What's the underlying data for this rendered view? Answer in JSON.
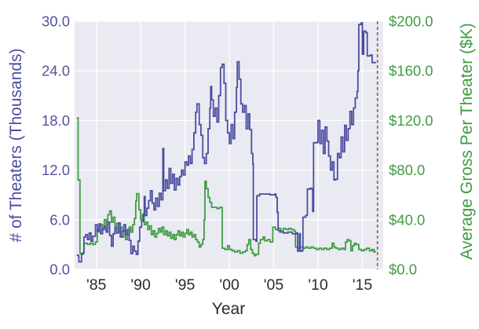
{
  "chart_data": {
    "type": "line",
    "title": "",
    "xlabel": "Year",
    "x_range": [
      1982.55,
      2017.35
    ],
    "grid": true,
    "plot_background": "#eaeaf2",
    "grid_color": "#ffffff",
    "x_ticks": {
      "labels": [
        "'85",
        "'90",
        "'95",
        "'00",
        "'05",
        "'10",
        "'15"
      ],
      "values": [
        1985,
        1990,
        1995,
        2000,
        2005,
        2010,
        2015
      ]
    },
    "left_axis": {
      "label": "# of Theaters (Thousands)",
      "color": "#4b4da0",
      "range": [
        0,
        30
      ],
      "tick_values": [
        0,
        6,
        12,
        18,
        24,
        30
      ],
      "tick_labels": [
        "0.0",
        "6.0",
        "12.0",
        "18.0",
        "24.0",
        "30.0"
      ]
    },
    "right_axis": {
      "label": "Average Gross Per Theater ($K)",
      "color": "#3f9c42",
      "range": [
        0,
        200
      ],
      "tick_values": [
        0,
        40,
        80,
        120,
        160,
        200
      ],
      "tick_labels": [
        "$0.0",
        "$40.0",
        "$80.0",
        "$120.0",
        "$160.0",
        "$200.0"
      ]
    },
    "vertical_marker": {
      "x": 2016.7,
      "color": "#a35252",
      "style": "dashed"
    },
    "series": [
      {
        "name": "Average Gross Per Theater ($K)",
        "axis": "right",
        "color": "#3f9c42",
        "x": [
          1982.8,
          1982.92,
          1982.95,
          1983.1,
          1983.15,
          1983.3,
          1983.5,
          1983.6,
          1983.8,
          1984.0,
          1984.3,
          1984.6,
          1984.9,
          1985.1,
          1985.3,
          1985.5,
          1985.7,
          1985.9,
          1986.1,
          1986.3,
          1986.5,
          1986.7,
          1986.9,
          1987.1,
          1987.3,
          1987.5,
          1987.7,
          1987.9,
          1988.1,
          1988.3,
          1988.5,
          1988.7,
          1988.9,
          1989.1,
          1989.3,
          1989.45,
          1989.55,
          1989.8,
          1990.0,
          1990.2,
          1990.4,
          1990.6,
          1990.8,
          1991.0,
          1991.2,
          1991.4,
          1991.6,
          1991.8,
          1992.0,
          1992.2,
          1992.4,
          1992.6,
          1992.8,
          1993.0,
          1993.2,
          1993.4,
          1993.6,
          1993.8,
          1994.0,
          1994.2,
          1994.4,
          1994.6,
          1994.8,
          1995.0,
          1995.2,
          1995.4,
          1995.6,
          1995.8,
          1996.0,
          1996.2,
          1996.4,
          1996.6,
          1996.8,
          1997.0,
          1997.15,
          1997.25,
          1997.4,
          1997.6,
          1997.8,
          1998.0,
          1998.3,
          1998.6,
          1998.9,
          1999.1,
          1999.2,
          1999.5,
          1999.8,
          2000.0,
          2000.3,
          2000.6,
          2000.9,
          2001.2,
          2001.5,
          2001.8,
          2002.0,
          2002.2,
          2002.4,
          2002.6,
          2002.8,
          2003.0,
          2003.3,
          2003.5,
          2003.8,
          2004.0,
          2004.3,
          2004.6,
          2004.9,
          2005.2,
          2005.5,
          2005.8,
          2006.1,
          2006.4,
          2006.7,
          2007.0,
          2007.3,
          2007.45,
          2007.7,
          2008.0,
          2008.3,
          2008.6,
          2008.9,
          2009.2,
          2009.5,
          2009.8,
          2010.1,
          2010.4,
          2010.7,
          2011.0,
          2011.3,
          2011.6,
          2011.8,
          2012.0,
          2012.3,
          2012.6,
          2012.9,
          2013.1,
          2013.3,
          2013.5,
          2013.7,
          2013.9,
          2014.1,
          2014.3,
          2014.6,
          2014.9,
          2015.2,
          2015.5,
          2015.8,
          2016.1,
          2016.3,
          2016.45
        ],
        "y": [
          122,
          122,
          72,
          72,
          13,
          12,
          13,
          21,
          21,
          20,
          21,
          20,
          22,
          32,
          30,
          36,
          33,
          40,
          36,
          44,
          47,
          38,
          42,
          34,
          37,
          30,
          34,
          26,
          31,
          24,
          28,
          34,
          30,
          36,
          41,
          55,
          61,
          48,
          40,
          44,
          36,
          38,
          32,
          35,
          28,
          31,
          26,
          29,
          33,
          30,
          34,
          28,
          31,
          27,
          30,
          25,
          28,
          24,
          28,
          31,
          27,
          30,
          26,
          29,
          32,
          28,
          30,
          26,
          28,
          24,
          22,
          18,
          20,
          24,
          40,
          71,
          65,
          58,
          54,
          50,
          50,
          49,
          50,
          50,
          17,
          16,
          19,
          16,
          15,
          14,
          15,
          13,
          14,
          15,
          20,
          24,
          16,
          13,
          11,
          12,
          21,
          24,
          26,
          23,
          24,
          22,
          34,
          32,
          33,
          31,
          33,
          32,
          33,
          32,
          31,
          18,
          17,
          18,
          17,
          18,
          17,
          18,
          17,
          16,
          17,
          16,
          17,
          16,
          17,
          21,
          18,
          17,
          16,
          17,
          16,
          22,
          24,
          23,
          15,
          19,
          21,
          20,
          16,
          15,
          16,
          17,
          15,
          16,
          14,
          15
        ]
      },
      {
        "name": "# of Theaters (Thousands)",
        "axis": "left",
        "color": "#4b4da0",
        "x": [
          1982.8,
          1983.0,
          1983.03,
          1983.3,
          1983.33,
          1983.55,
          1983.6,
          1983.8,
          1984.0,
          1984.2,
          1984.4,
          1984.6,
          1984.9,
          1985.1,
          1985.3,
          1985.5,
          1985.7,
          1985.9,
          1986.1,
          1986.3,
          1986.5,
          1986.7,
          1986.9,
          1987.1,
          1987.3,
          1987.5,
          1987.7,
          1987.9,
          1988.1,
          1988.3,
          1988.5,
          1988.7,
          1988.9,
          1989.1,
          1989.3,
          1989.5,
          1989.7,
          1989.9,
          1990.1,
          1990.3,
          1990.4,
          1990.5,
          1990.7,
          1990.9,
          1991.1,
          1991.3,
          1991.5,
          1991.7,
          1991.9,
          1992.1,
          1992.3,
          1992.5,
          1992.6,
          1992.8,
          1993.0,
          1993.2,
          1993.4,
          1993.6,
          1993.8,
          1994.0,
          1994.2,
          1994.4,
          1994.6,
          1994.8,
          1995.0,
          1995.2,
          1995.4,
          1995.6,
          1995.8,
          1996.0,
          1996.2,
          1996.35,
          1996.6,
          1996.8,
          1997.0,
          1997.2,
          1997.4,
          1997.6,
          1997.8,
          1997.9,
          1998.0,
          1998.2,
          1998.4,
          1998.6,
          1998.8,
          1999.0,
          1999.2,
          1999.4,
          1999.6,
          1999.8,
          2000.0,
          2000.2,
          2000.4,
          2000.6,
          2000.8,
          2000.9,
          2001.1,
          2001.3,
          2001.5,
          2001.7,
          2001.9,
          2002.1,
          2002.3,
          2002.5,
          2002.65,
          2002.7,
          2003.0,
          2003.1,
          2003.4,
          2004.0,
          2004.6,
          2005.1,
          2005.25,
          2005.4,
          2005.5,
          2005.7,
          2006.1,
          2006.6,
          2007.1,
          2007.6,
          2007.7,
          2007.9,
          2008.0,
          2008.25,
          2008.3,
          2008.6,
          2008.8,
          2009.1,
          2009.3,
          2009.4,
          2009.5,
          2009.9,
          2010.0,
          2010.2,
          2010.4,
          2010.6,
          2010.8,
          2011.0,
          2011.2,
          2011.4,
          2011.6,
          2011.8,
          2012.0,
          2012.2,
          2012.4,
          2012.6,
          2012.8,
          2013.0,
          2013.2,
          2013.4,
          2013.6,
          2013.8,
          2014.0,
          2014.2,
          2014.4,
          2014.5,
          2014.6,
          2014.85,
          2015.0,
          2015.15,
          2015.4,
          2015.55,
          2015.9,
          2016.1,
          2016.45
        ],
        "y": [
          1.7,
          1.6,
          0.9,
          0.9,
          1.9,
          2.0,
          3.9,
          4.2,
          3.6,
          4.4,
          3.4,
          4.0,
          5.4,
          4.6,
          5.5,
          4.3,
          4.8,
          5.2,
          4.5,
          5.7,
          4.1,
          2.8,
          4.3,
          5.0,
          4.4,
          5.6,
          3.9,
          4.6,
          5.4,
          4.2,
          4.8,
          3.5,
          1.9,
          2.8,
          2.2,
          1.8,
          3.4,
          5.1,
          5.8,
          6.7,
          8.8,
          6.5,
          7.4,
          8.3,
          9.5,
          8.0,
          7.2,
          8.6,
          7.6,
          9.2,
          8.4,
          14.6,
          9.5,
          10.8,
          9.8,
          12.2,
          10.4,
          11.5,
          9.6,
          11.0,
          10.2,
          11.2,
          12.0,
          11.4,
          13.0,
          12.6,
          13.7,
          12.8,
          14.5,
          16.5,
          19.0,
          20.0,
          17.5,
          16.2,
          13.5,
          12.8,
          14.0,
          17.0,
          19.5,
          22.1,
          20.5,
          18.5,
          19.5,
          17.8,
          21.0,
          24.4,
          24.8,
          22.5,
          18.0,
          16.5,
          15.2,
          17.5,
          15.8,
          19.0,
          22.0,
          25.1,
          23.0,
          20.0,
          19.0,
          19.8,
          17.0,
          18.8,
          16.9,
          14.0,
          12.7,
          3.6,
          3.4,
          8.9,
          9.1,
          9.1,
          9.0,
          9.1,
          8.7,
          6.9,
          4.7,
          4.5,
          4.4,
          4.5,
          4.3,
          4.4,
          2.2,
          4.3,
          2.2,
          2.3,
          6.3,
          6.5,
          9.7,
          9.8,
          9.7,
          7.0,
          15.3,
          15.4,
          18.0,
          15.2,
          16.8,
          14.0,
          17.2,
          15.5,
          13.7,
          12.0,
          13.0,
          10.8,
          10.9,
          14.0,
          13.5,
          16.0,
          14.2,
          17.4,
          15.6,
          17.0,
          19.1,
          17.5,
          19.5,
          20.7,
          21.5,
          24.0,
          29.6,
          29.8,
          26.0,
          28.8,
          28.6,
          25.8,
          25.9,
          25.0,
          24.9
        ]
      }
    ]
  }
}
